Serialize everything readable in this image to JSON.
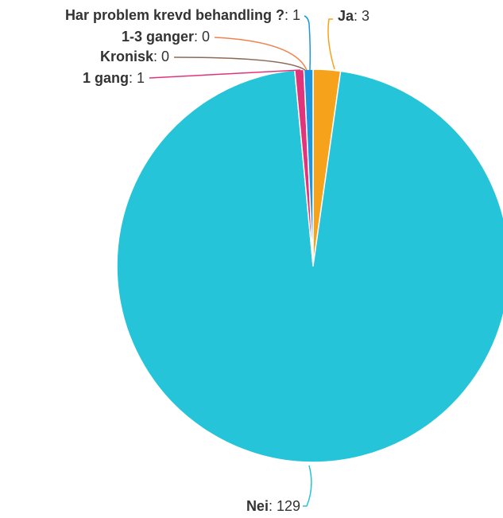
{
  "chart_data": {
    "type": "pie",
    "title": "",
    "slices": [
      {
        "name": "Ja",
        "value": 3,
        "color": "#f7a21b"
      },
      {
        "name": "Nei",
        "value": 129,
        "color": "#26c4d9"
      },
      {
        "name": "1 gang",
        "value": 1,
        "color": "#e0357a"
      },
      {
        "name": "Kronisk",
        "value": 0,
        "color": "#8d6a57"
      },
      {
        "name": "1-3 ganger",
        "value": 0,
        "color": "#f2824a"
      },
      {
        "name": "Har problem krevd behandling ?",
        "value": 1,
        "color": "#1d96e0"
      }
    ],
    "separator": ": ",
    "legend": "none"
  }
}
